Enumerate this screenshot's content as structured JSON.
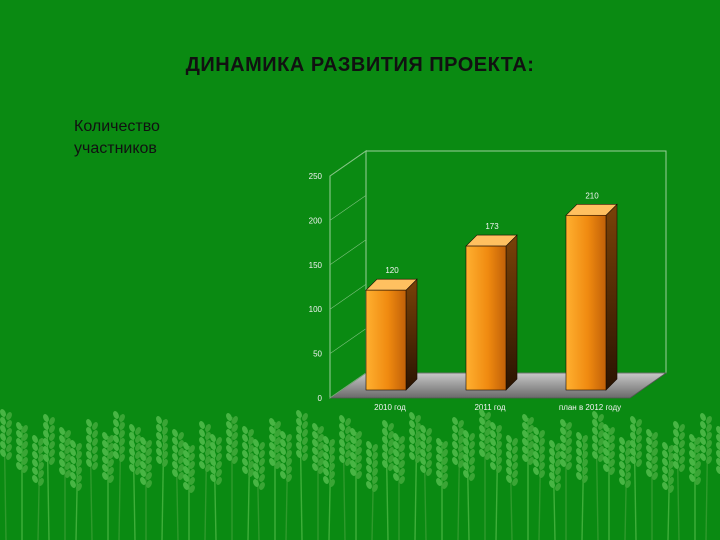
{
  "slide": {
    "title": "ДИНАМИКА РАЗВИТИЯ ПРОЕКТА:",
    "subtitle_line1": "Количество",
    "subtitle_line2": "участников"
  },
  "colors": {
    "background": "#0a8a12",
    "bar_light": "#ffa31a",
    "bar_dark": "#5a2f05"
  },
  "chart_data": {
    "type": "bar",
    "categories": [
      "2010 год",
      "2011 год",
      "план в 2012 году"
    ],
    "values": [
      120,
      173,
      210
    ],
    "data_labels": [
      "120",
      "173",
      "210"
    ],
    "ylim": [
      0,
      250
    ],
    "yticks": [
      "0",
      "50",
      "100",
      "150",
      "200",
      "250"
    ],
    "grid": true,
    "style": "3d-column"
  }
}
